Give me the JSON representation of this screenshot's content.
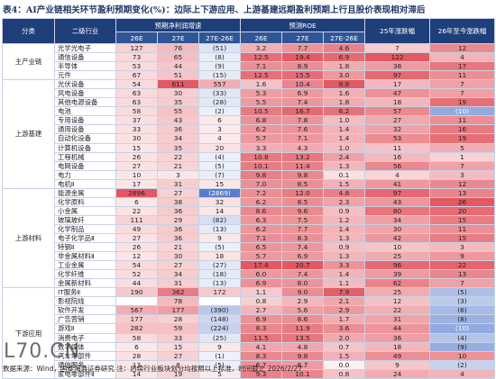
{
  "title": "表4：AI产业链相关环节盈利预期变化(%)：边际上下游应用、上游基建远期盈利预期上行且股价表现相对滞后",
  "header": {
    "category": "分类",
    "industry": "二级行业",
    "growth": "预期净利润增速",
    "roe": "预测ROE",
    "ret25": "25年涨跌幅",
    "ret26": "26年至今涨跌幅",
    "sub": [
      "26E",
      "27E",
      "27E-26E",
      "26E",
      "27E",
      "27E-26E"
    ]
  },
  "table": {
    "groups": [
      {
        "name": "主产业链",
        "rows": [
          [
            "光学光电子",
            "127",
            "76",
            "(51)",
            "3.2",
            "7.7",
            "4.6",
            "7",
            "12"
          ],
          [
            "通信设备",
            "73",
            "65",
            "(8)",
            "12.5",
            "19.4",
            "6.9",
            "122",
            "4"
          ],
          [
            "半导体",
            "53",
            "44",
            "(9)",
            "7.1",
            "8.9",
            "1.8",
            "38",
            "17"
          ],
          [
            "元件",
            "67",
            "51",
            "(15)",
            "12.5",
            "15.5",
            "3.0",
            "97",
            "11"
          ]
        ]
      },
      {
        "name": "上游基建",
        "rows": [
          [
            "光伏设备",
            "54",
            "611",
            "557",
            "1.6",
            "10.4",
            "8.8",
            "17",
            "7"
          ],
          [
            "风电设备",
            "63",
            "30",
            "(33)",
            "5.3",
            "6.9",
            "1.6",
            "47",
            "7"
          ],
          [
            "其他电源设备",
            "63",
            "35",
            "(28)",
            "5.5",
            "7.4",
            "1.8",
            "18",
            "19"
          ],
          [
            "电池",
            "58",
            "55",
            "(2)",
            "10.5",
            "16.7",
            "6.2",
            "57",
            "(10)"
          ],
          [
            "专用设备",
            "37",
            "43",
            "6",
            "6.8",
            "7.8",
            "1.0",
            "27",
            "11"
          ],
          [
            "通用设备",
            "33",
            "36",
            "3",
            "6.2",
            "7.6",
            "1.4",
            "32",
            "16"
          ],
          [
            "自动化设备",
            "30",
            "34",
            "4",
            "5.7",
            "7.1",
            "1.4",
            "53",
            "19"
          ],
          [
            "计算机设备",
            "15",
            "35",
            "20",
            "3.3",
            "4.3",
            "1.0",
            "11",
            "5"
          ],
          [
            "工程机械",
            "26",
            "22",
            "(4)",
            "10.8",
            "13.2",
            "2.4",
            "16",
            "1"
          ],
          [
            "电网设备",
            "27",
            "21",
            "(5)",
            "10.1",
            "11.4",
            "1.3",
            "56",
            "7"
          ],
          [
            "电力",
            "10",
            "3",
            "(7)",
            "9.8",
            "9.8",
            "0.1",
            "4",
            "3"
          ],
          [
            "电机Ⅱ",
            "17",
            "31",
            "15",
            "7.0",
            "8.5",
            "1.5",
            "41",
            "12"
          ]
        ]
      },
      {
        "name": "上游材料",
        "rows": [
          [
            "能源金属",
            "2896",
            "27",
            "(2869)",
            "7.2",
            "12.0",
            "4.8",
            "97",
            "13"
          ],
          [
            "化学原料",
            "6",
            "38",
            "32",
            "6.2",
            "8.5",
            "2.3",
            "43",
            "26"
          ],
          [
            "小金属",
            "22",
            "36",
            "14",
            "8.6",
            "9.6",
            "0.9",
            "80",
            "20"
          ],
          [
            "玻璃玻纤",
            "111",
            "29",
            "(82)",
            "6.3",
            "7.5",
            "1.2",
            "34",
            "15"
          ],
          [
            "化学制品",
            "49",
            "36",
            "(13)",
            "6.2",
            "7.7",
            "1.4",
            "30",
            "11"
          ],
          [
            "电子化学品Ⅱ",
            "27",
            "36",
            "9",
            "7.1",
            "8.3",
            "1.3",
            "42",
            "15"
          ],
          [
            "特钢Ⅱ",
            "26",
            "21",
            "(5)",
            "6.5",
            "7.4",
            "0.9",
            "10",
            "3"
          ],
          [
            "非金属材料Ⅱ",
            "12",
            "30",
            "18",
            "5.7",
            "6.9",
            "1.3",
            "25",
            "9"
          ],
          [
            "工业金属",
            "54",
            "27",
            "(27)",
            "17.4",
            "20.7",
            "3.3",
            "96",
            "22"
          ],
          [
            "化学纤维",
            "52",
            "34",
            "(18)",
            "6.0",
            "7.4",
            "1.4",
            "39",
            "13"
          ],
          [
            "金属新材料",
            "44",
            "31",
            "(13)",
            "6.9",
            "8.0",
            "1.1",
            "62",
            "7"
          ]
        ]
      },
      {
        "name": "下游应用",
        "rows": [
          [
            "IT服务Ⅱ",
            "190",
            "362",
            "172",
            "1.1",
            "9.0",
            "7.9",
            "25",
            "(5)"
          ],
          [
            "影视院线",
            "",
            "78",
            "",
            "0.8",
            "2.9",
            "2.1",
            "12",
            "(3)"
          ],
          [
            "软件开发",
            "567",
            "177",
            "(390)",
            "2.7",
            "5.6",
            "2.9",
            "22",
            "(6)"
          ],
          [
            "广告营销",
            "177",
            "28",
            "(148)",
            "6.9",
            "8.6",
            "1.7",
            "31",
            "(8)"
          ],
          [
            "游戏Ⅱ",
            "282",
            "59",
            "(224)",
            "8.3",
            "11.9",
            "3.6",
            "44",
            "(10)"
          ],
          [
            "消费电子",
            "58",
            "33",
            "(25)",
            "11.5",
            "13.5",
            "2.0",
            "36",
            "(4)"
          ],
          [
            "数字媒体",
            "6",
            "15",
            "9",
            "4.1",
            "4.8",
            "0.7",
            "18",
            "(9)"
          ],
          [
            "汽车零部件",
            "28",
            "27",
            "(1)",
            "8.3",
            "9.8",
            "1.5",
            "49",
            "10"
          ],
          [
            "通信服务",
            "13",
            "8",
            "(5)",
            "6.7",
            "6.7",
            "0.0",
            "9",
            "(2)"
          ],
          [
            "家电零部件Ⅱ",
            "14",
            "19",
            "5",
            "9.3",
            "10.1",
            "0.8",
            "24",
            "4"
          ]
        ]
      }
    ]
  },
  "source": "数据来源：Wind，国泰海通证券研究  注：后续行业板块划分均按照以上标准，时间截止 2026/2/27",
  "watermark": "L70.CN"
}
